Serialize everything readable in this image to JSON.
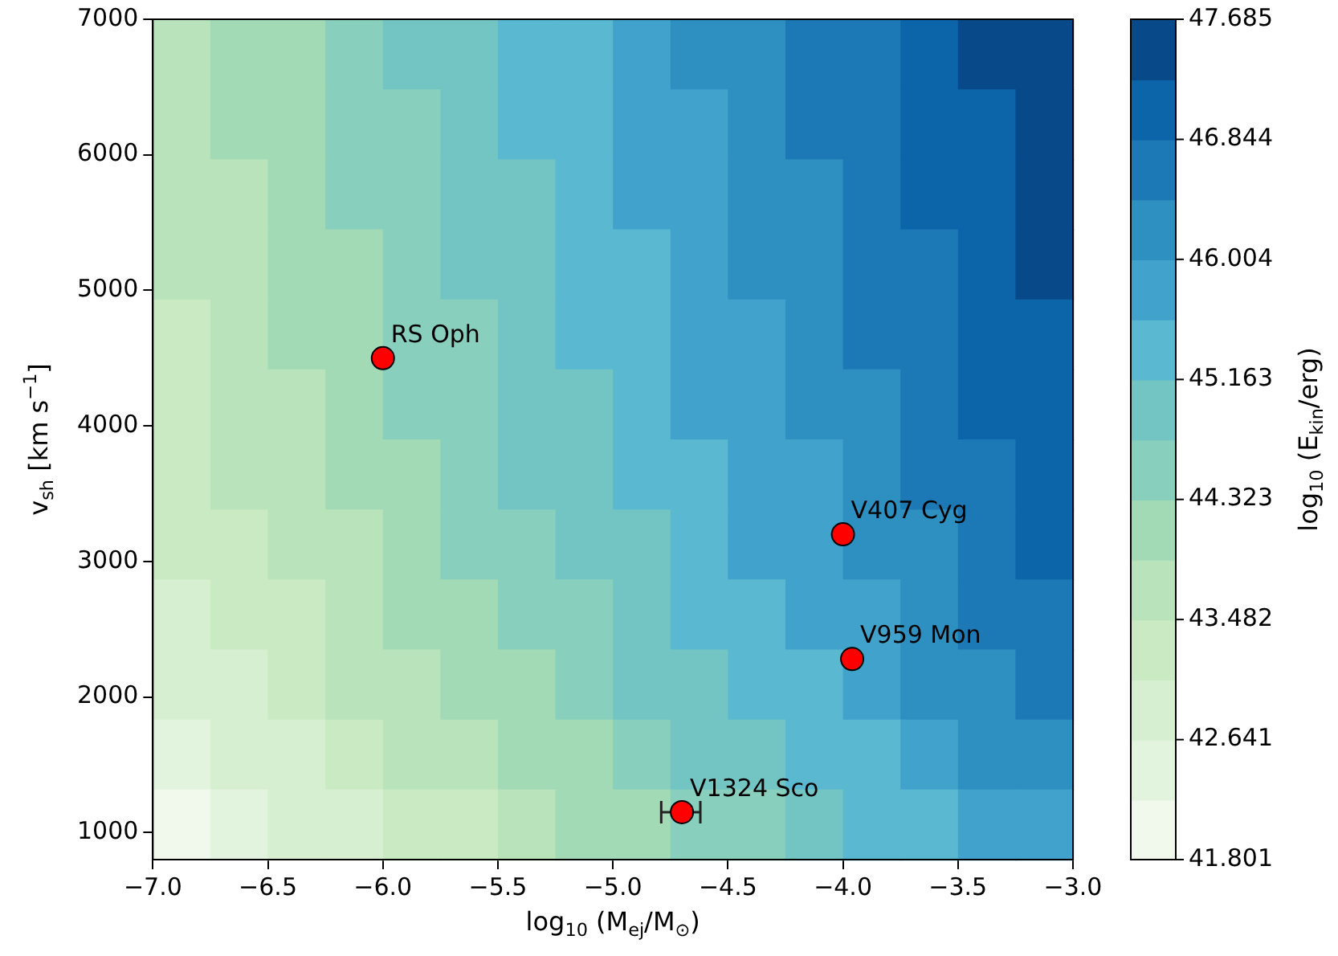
{
  "chart_data": {
    "type": "heatmap",
    "xlabel": "log$_{10}$ (M$_{ej}$/M$_{⊙}$)",
    "ylabel": "v$_{sh}$ [km s$^{−1}$]",
    "clabel": "log$_{10}$ (E$_{kin}$/erg)",
    "xlim": [
      -7,
      -3
    ],
    "xticks": [
      {
        "value": -7,
        "label": "−7.0"
      },
      {
        "value": -6.5,
        "label": "−6.5"
      },
      {
        "value": -6,
        "label": "−6.0"
      },
      {
        "value": -5.5,
        "label": "−5.5"
      },
      {
        "value": -5,
        "label": "−5.0"
      },
      {
        "value": -4.5,
        "label": "−4.5"
      },
      {
        "value": -4,
        "label": "−4.0"
      },
      {
        "value": -3.5,
        "label": "−3.5"
      },
      {
        "value": -3,
        "label": "−3.0"
      }
    ],
    "ylim": [
      800,
      7000
    ],
    "yticks": [
      1000,
      2000,
      3000,
      4000,
      5000,
      6000,
      7000
    ],
    "clim": [
      41.801,
      47.685
    ],
    "cticks": [
      41.801,
      42.641,
      43.482,
      44.323,
      45.163,
      46.004,
      46.844,
      47.685
    ],
    "colors": [
      "#f0f9eb",
      "#e2f4dd",
      "#d6efd0",
      "#c9eac3",
      "#b8e3bb",
      "#a2dab6",
      "#88cfbd",
      "#73c5c4",
      "#5ab8d1",
      "#41a3cc",
      "#2e8fc1",
      "#1c79b5",
      "#0c65a9",
      "#08498a"
    ],
    "legend": false,
    "marker": "circle",
    "annotations": [
      {
        "text": "RS Oph",
        "x": -6.0,
        "y": 4500
      },
      {
        "text": "V407 Cyg",
        "x": -4.0,
        "y": 3200
      },
      {
        "text": "V959 Mon",
        "x": -3.96,
        "y": 2280
      },
      {
        "text": "V1324 Sco",
        "x": -4.7,
        "y": 1150
      }
    ],
    "cells": [
      [
        43.69,
        44.11,
        44.11,
        44.53,
        44.95,
        44.95,
        45.37,
        45.37,
        45.79,
        46.21,
        46.21,
        46.63,
        46.63,
        47.05,
        47.47,
        47.47
      ],
      [
        43.69,
        44.11,
        44.11,
        44.53,
        44.53,
        44.95,
        45.37,
        45.37,
        45.79,
        45.79,
        46.21,
        46.63,
        46.63,
        47.05,
        47.05,
        47.47
      ],
      [
        43.69,
        43.69,
        44.11,
        44.53,
        44.53,
        44.95,
        44.95,
        45.37,
        45.79,
        45.79,
        46.21,
        46.21,
        46.63,
        47.05,
        47.05,
        47.47
      ],
      [
        43.69,
        43.69,
        44.11,
        44.11,
        44.53,
        44.95,
        44.95,
        45.37,
        45.37,
        45.79,
        46.21,
        46.21,
        46.63,
        46.63,
        47.05,
        47.47
      ],
      [
        43.27,
        43.69,
        44.11,
        44.11,
        44.53,
        44.53,
        44.95,
        45.37,
        45.37,
        45.79,
        45.79,
        46.21,
        46.63,
        46.63,
        47.05,
        47.05
      ],
      [
        43.27,
        43.69,
        43.69,
        44.11,
        44.53,
        44.53,
        44.95,
        44.95,
        45.37,
        45.79,
        45.79,
        46.21,
        46.21,
        46.63,
        47.05,
        47.05
      ],
      [
        43.27,
        43.69,
        43.69,
        44.11,
        44.11,
        44.53,
        44.95,
        44.95,
        45.37,
        45.37,
        45.79,
        45.79,
        46.21,
        46.63,
        46.63,
        47.05
      ],
      [
        43.27,
        43.27,
        43.69,
        43.69,
        44.11,
        44.53,
        44.53,
        44.95,
        44.95,
        45.37,
        45.79,
        45.79,
        46.21,
        46.21,
        46.63,
        47.05
      ],
      [
        42.85,
        43.27,
        43.27,
        43.69,
        44.11,
        44.11,
        44.53,
        44.53,
        44.95,
        45.37,
        45.37,
        45.79,
        45.79,
        46.21,
        46.63,
        46.63
      ],
      [
        42.85,
        42.85,
        43.27,
        43.69,
        43.69,
        44.11,
        44.11,
        44.53,
        44.95,
        44.95,
        45.37,
        45.37,
        45.79,
        46.21,
        46.21,
        46.63
      ],
      [
        42.43,
        42.85,
        42.85,
        43.27,
        43.69,
        43.69,
        44.11,
        44.11,
        44.53,
        44.95,
        44.95,
        45.37,
        45.37,
        45.79,
        46.21,
        46.21
      ],
      [
        42.01,
        42.43,
        42.85,
        42.85,
        43.27,
        43.27,
        43.69,
        44.11,
        44.11,
        44.53,
        44.53,
        44.95,
        45.37,
        45.37,
        45.79,
        45.79
      ]
    ],
    "series": [
      {
        "type": "scatter",
        "color": "#ff0000",
        "x": [
          -6.0,
          -4.0,
          -3.96,
          -4.7
        ],
        "values": [
          4500,
          3200,
          2280,
          1150
        ],
        "xerrors": [
          null,
          null,
          null,
          [
            -4.79,
            -4.62
          ]
        ]
      }
    ]
  }
}
